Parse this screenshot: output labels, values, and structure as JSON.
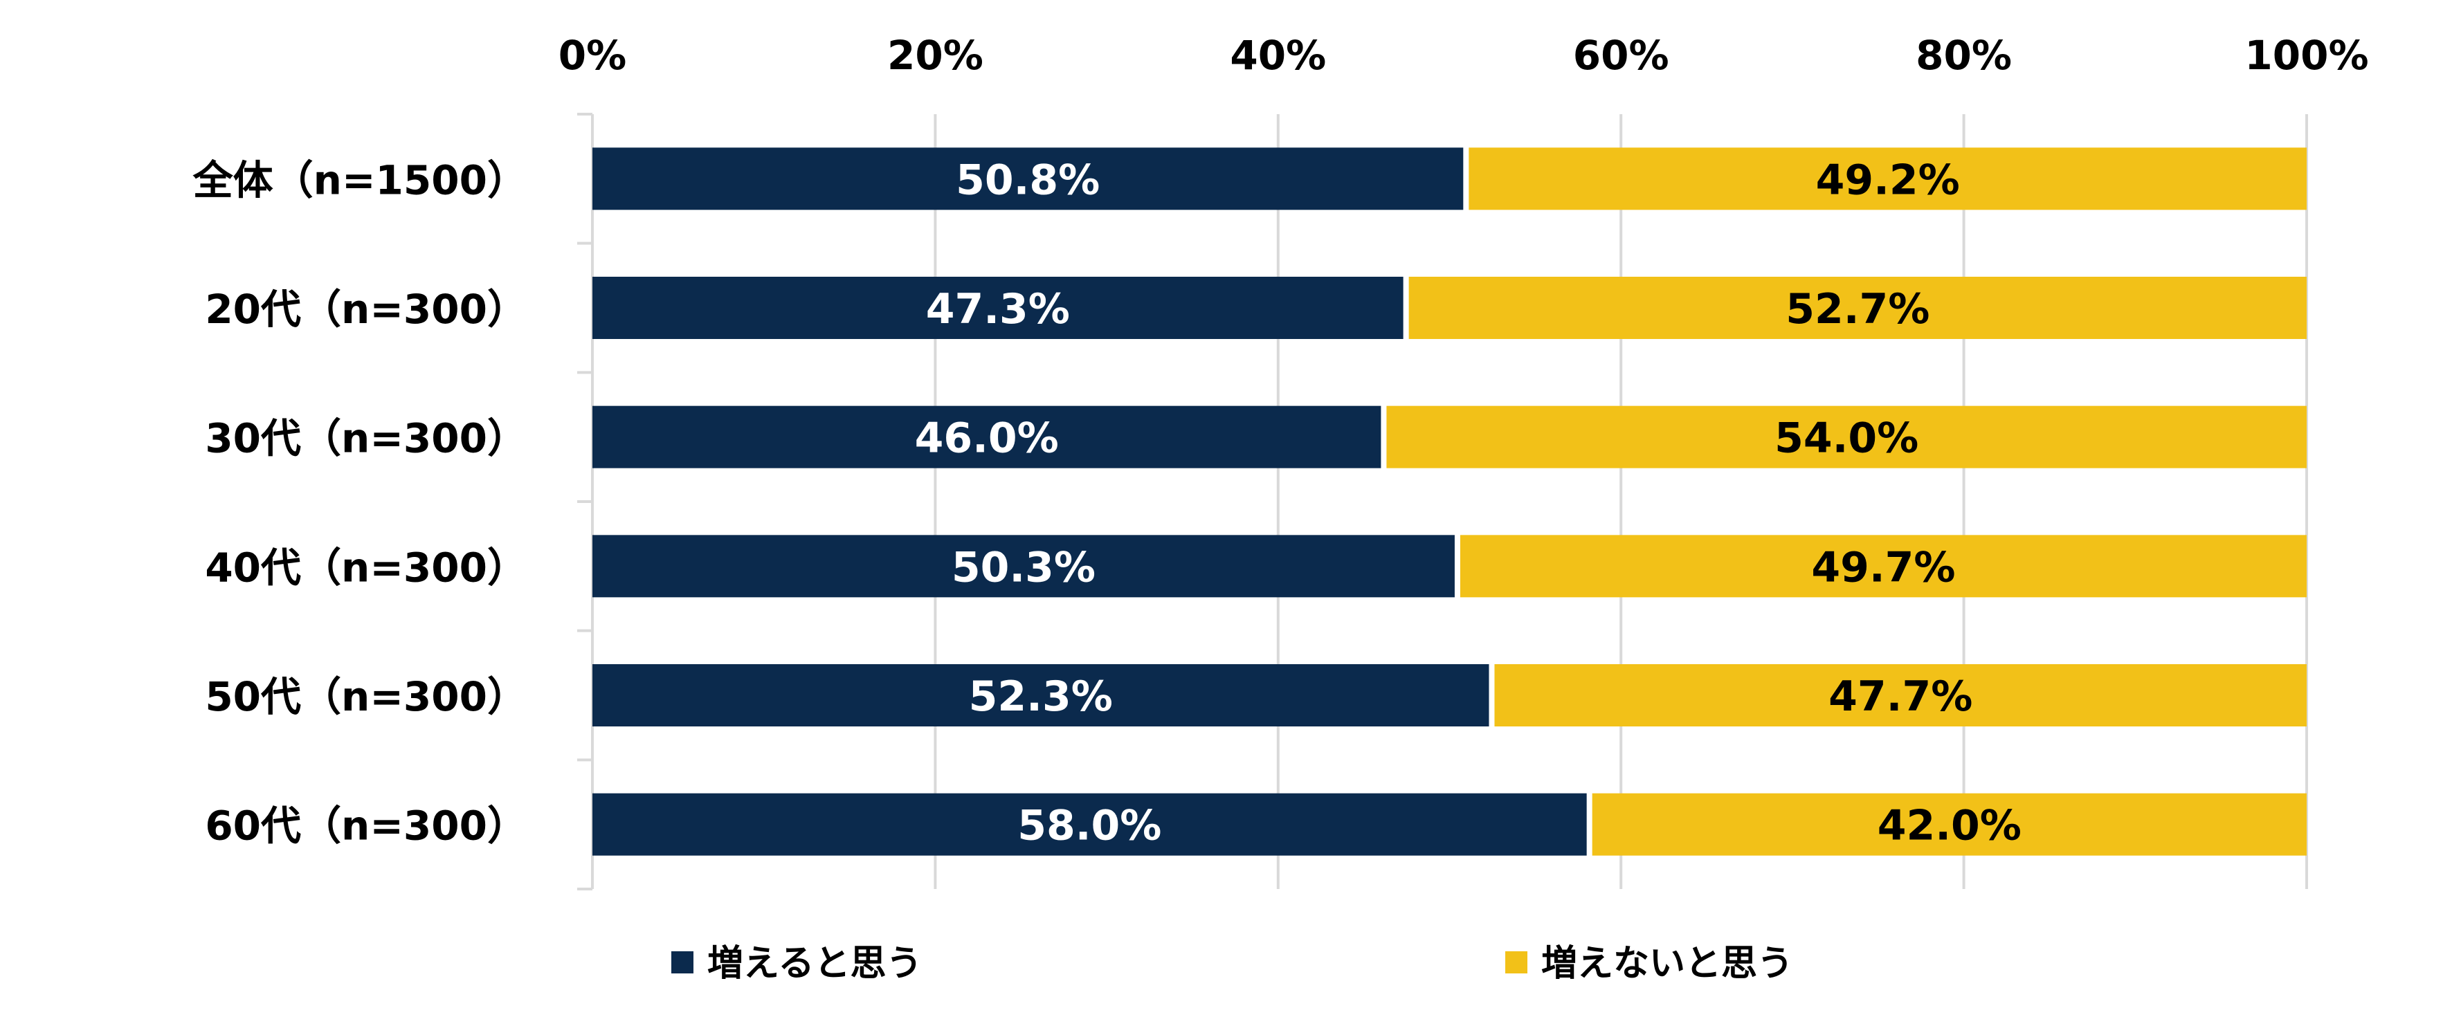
{
  "chart_data": {
    "type": "bar",
    "orientation": "horizontal",
    "stacked": true,
    "categories": [
      "全体（n=1500）",
      "20代（n=300）",
      "30代（n=300）",
      "40代（n=300）",
      "50代（n=300）",
      "60代（n=300）"
    ],
    "series": [
      {
        "name": "増えると思う",
        "values": [
          50.8,
          47.3,
          46.0,
          50.3,
          52.3,
          58.0
        ],
        "labels": [
          "50.8%",
          "47.3%",
          "46.0%",
          "50.3%",
          "52.3%",
          "58.0%"
        ],
        "color": "#0b2a4d",
        "label_color": "#ffffff"
      },
      {
        "name": "増えないと思う",
        "values": [
          49.2,
          52.7,
          54.0,
          49.7,
          47.7,
          42.0
        ],
        "labels": [
          "49.2%",
          "52.7%",
          "54.0%",
          "49.7%",
          "47.7%",
          "42.0%"
        ],
        "color": "#f2c118",
        "label_color": "#000000"
      }
    ],
    "x_ticks": [
      "0%",
      "20%",
      "40%",
      "60%",
      "80%",
      "100%"
    ],
    "x_tick_values": [
      0,
      20,
      40,
      60,
      80,
      100
    ],
    "xlim": [
      0,
      100
    ],
    "title": "",
    "xlabel": "",
    "ylabel": "",
    "grid": true,
    "legend_position": "bottom"
  }
}
